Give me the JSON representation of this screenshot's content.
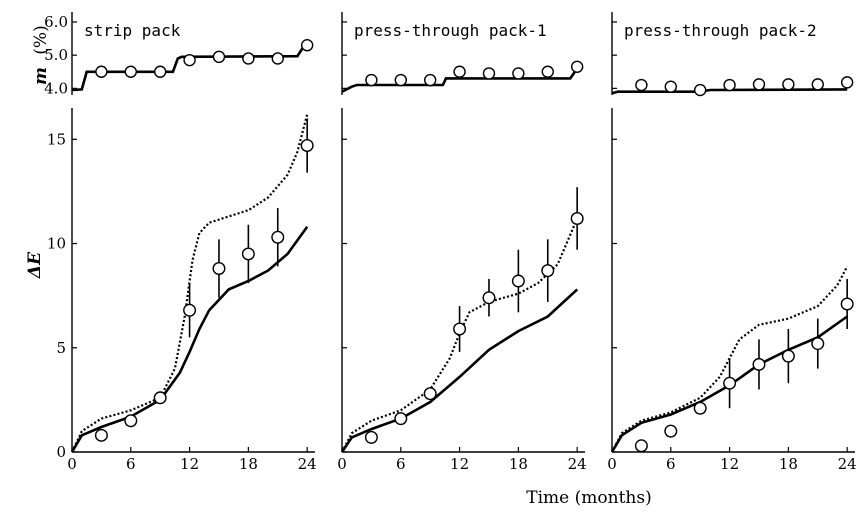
{
  "chart_data": {
    "type": "line",
    "xlabel": "Time (months)",
    "x_ticks": [
      0,
      6,
      12,
      18,
      24
    ],
    "xlim": [
      0,
      24.8
    ],
    "top_ylabel": {
      "italic": "m",
      "unit": "(%)"
    },
    "top_ylim": [
      3.8,
      6.3
    ],
    "top_yticks": [
      "4.0",
      "5.0",
      "6.0"
    ],
    "bottom_ylabel": "ΔE",
    "bottom_ylim": [
      0,
      16.5
    ],
    "bottom_yticks": [
      "0",
      "5",
      "10",
      "15"
    ],
    "panels": [
      {
        "title": "strip pack",
        "moisture": {
          "points": {
            "x": [
              3,
              6,
              9,
              12,
              15,
              18,
              21,
              24
            ],
            "y": [
              4.5,
              4.5,
              4.5,
              4.85,
              4.95,
              4.9,
              4.9,
              5.3
            ]
          },
          "line": {
            "x": [
              0,
              1,
              1.5,
              10.3,
              10.8,
              11.2,
              23,
              23.5,
              24
            ],
            "y": [
              3.95,
              3.97,
              4.5,
              4.5,
              4.9,
              4.95,
              4.97,
              5.2,
              5.3
            ]
          }
        },
        "delta_e": {
          "points": {
            "x": [
              3,
              6,
              9,
              12,
              15,
              18,
              21,
              24
            ],
            "y": [
              0.8,
              1.5,
              2.6,
              6.8,
              8.8,
              9.5,
              10.3,
              14.7
            ],
            "err": [
              0,
              0,
              0,
              1.3,
              1.4,
              1.4,
              1.4,
              1.3
            ]
          },
          "solid_line": {
            "x": [
              0,
              1,
              3,
              6,
              9,
              11,
              12,
              13,
              14,
              16,
              18,
              20,
              22,
              24
            ],
            "y": [
              0,
              0.8,
              1.2,
              1.7,
              2.5,
              3.8,
              4.8,
              5.9,
              6.8,
              7.8,
              8.2,
              8.7,
              9.5,
              10.8
            ]
          },
          "dotted_line": {
            "x": [
              0,
              1,
              3,
              6,
              9,
              10.5,
              11.5,
              12.3,
              13,
              14,
              16,
              18,
              20,
              22,
              23,
              24
            ],
            "y": [
              0,
              1,
              1.6,
              2,
              2.6,
              4,
              6.5,
              9.2,
              10.5,
              11,
              11.3,
              11.6,
              12.2,
              13.3,
              14.4,
              16.2
            ]
          }
        }
      },
      {
        "title": "press-through pack-1",
        "moisture": {
          "points": {
            "x": [
              3,
              6,
              9,
              12,
              15,
              18,
              21,
              24
            ],
            "y": [
              4.25,
              4.25,
              4.25,
              4.5,
              4.45,
              4.45,
              4.5,
              4.65
            ]
          },
          "line": {
            "x": [
              0,
              1,
              1.5,
              10.3,
              10.6,
              23.3,
              24
            ],
            "y": [
              3.9,
              4.05,
              4.1,
              4.1,
              4.3,
              4.3,
              4.6
            ]
          }
        },
        "delta_e": {
          "points": {
            "x": [
              3,
              6,
              9,
              12,
              15,
              18,
              21,
              24
            ],
            "y": [
              0.7,
              1.6,
              2.8,
              5.9,
              7.4,
              8.2,
              8.7,
              11.2
            ],
            "err": [
              0,
              0,
              0,
              1.1,
              0.9,
              1.5,
              1.5,
              1.5
            ]
          },
          "solid_line": {
            "x": [
              0,
              1,
              3,
              6,
              9,
              12,
              15,
              18,
              21,
              24
            ],
            "y": [
              0,
              0.7,
              1.1,
              1.6,
              2.4,
              3.6,
              4.9,
              5.8,
              6.5,
              7.8
            ]
          },
          "dotted_line": {
            "x": [
              0,
              1,
              3,
              6,
              9,
              11,
              12,
              13,
              15,
              18,
              20,
              22,
              24
            ],
            "y": [
              0,
              0.9,
              1.5,
              2,
              3,
              4.5,
              5.7,
              6.7,
              7.2,
              7.6,
              8.1,
              9,
              11.2
            ]
          }
        }
      },
      {
        "title": "press-through pack-2",
        "moisture": {
          "points": {
            "x": [
              3,
              6,
              9,
              12,
              15,
              18,
              21,
              24
            ],
            "y": [
              4.1,
              4.05,
              3.95,
              4.1,
              4.12,
              4.12,
              4.12,
              4.18
            ]
          },
          "line": {
            "x": [
              0,
              0.6,
              9,
              10,
              24
            ],
            "y": [
              3.85,
              3.9,
              3.9,
              3.95,
              3.97
            ]
          }
        },
        "delta_e": {
          "points": {
            "x": [
              3,
              6,
              9,
              12,
              15,
              18,
              21,
              24
            ],
            "y": [
              0.3,
              1,
              2.1,
              3.3,
              4.2,
              4.6,
              5.2,
              7.1
            ],
            "err": [
              0,
              0,
              0,
              1.2,
              1.2,
              1.3,
              1.2,
              1.2
            ]
          },
          "solid_line": {
            "x": [
              0,
              1,
              3,
              6,
              9,
              12,
              15,
              18,
              21,
              24
            ],
            "y": [
              0,
              0.8,
              1.4,
              1.8,
              2.4,
              3.2,
              4.2,
              4.9,
              5.5,
              6.5
            ]
          },
          "dotted_line": {
            "x": [
              0,
              1,
              3,
              6,
              9,
              11,
              12,
              13,
              15,
              18,
              21,
              23,
              24
            ],
            "y": [
              0,
              0.9,
              1.5,
              1.9,
              2.6,
              3.6,
              4.5,
              5.4,
              6.1,
              6.4,
              7,
              8,
              8.9
            ]
          }
        }
      }
    ]
  }
}
